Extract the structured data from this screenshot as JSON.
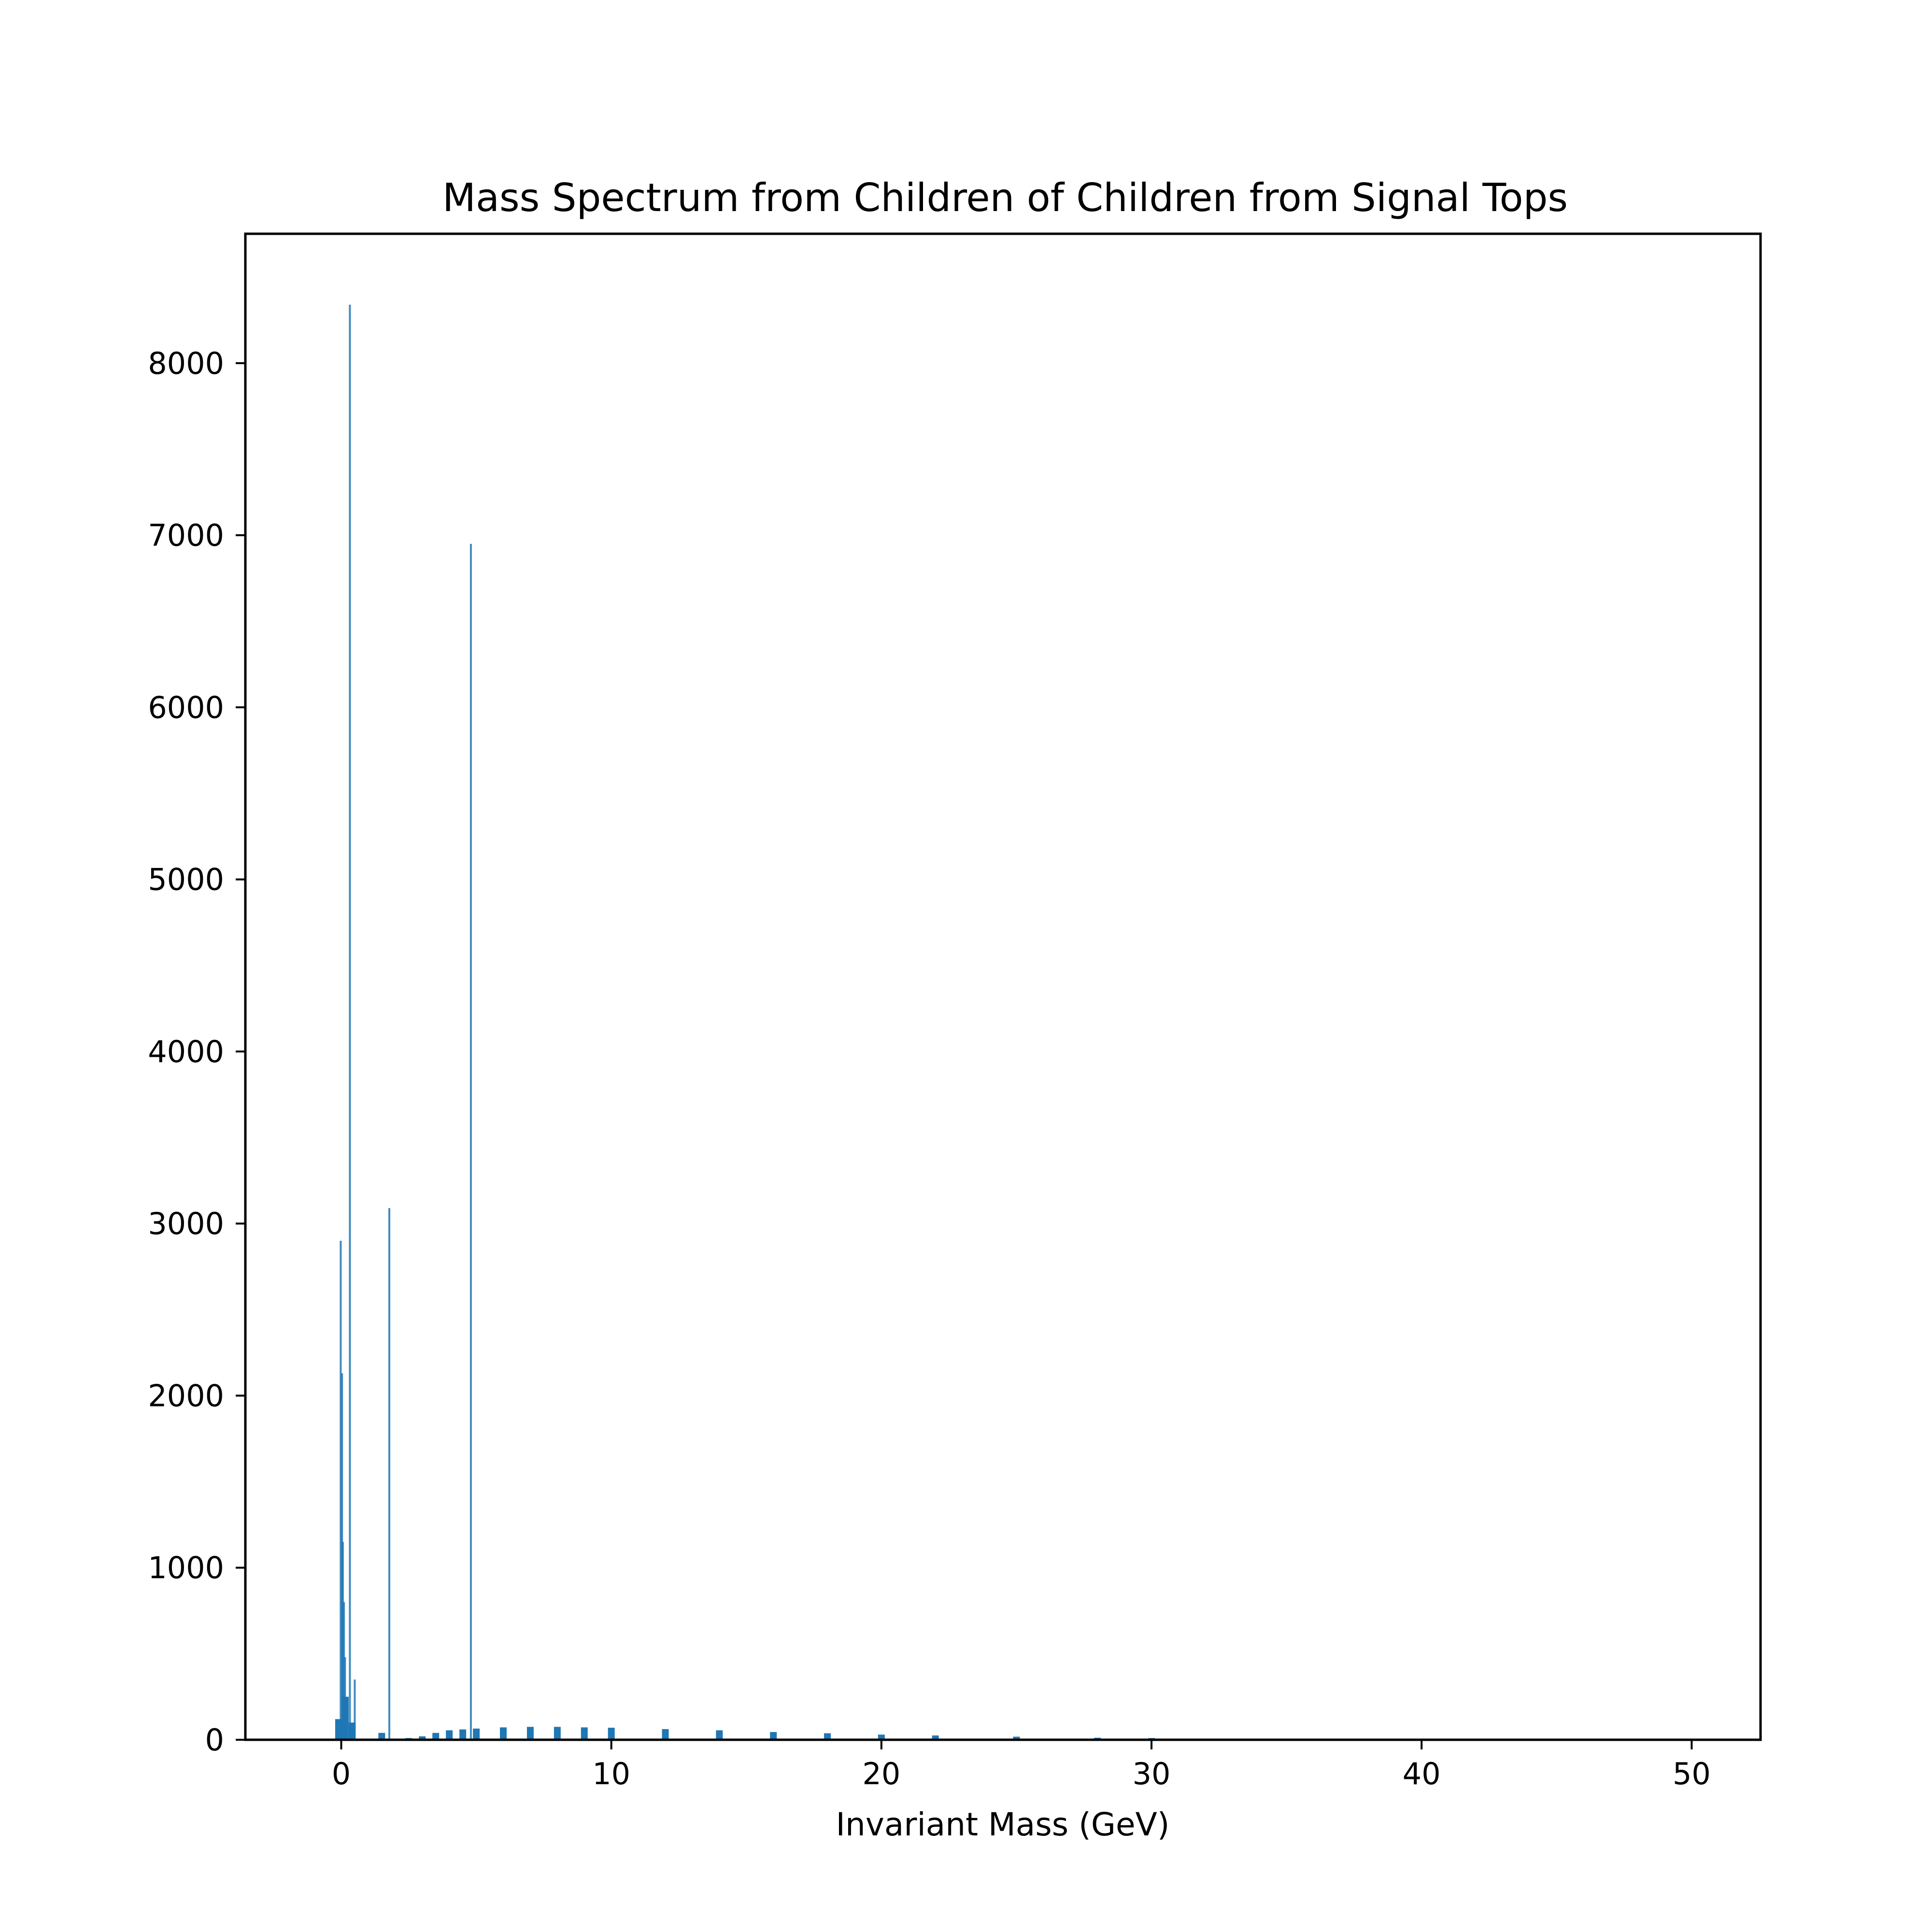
{
  "chart_data": {
    "type": "bar",
    "title": "Mass Spectrum from Children of Children from Signal Tops",
    "xlabel": "Invariant Mass (GeV)",
    "ylabel": "",
    "xlim": [
      -3.55,
      52.55
    ],
    "ylim": [
      0,
      8752
    ],
    "grid": false,
    "legend": "none",
    "bar_color": "#1f77b4",
    "x_ticks": [
      0,
      10,
      20,
      30,
      40,
      50
    ],
    "x_tick_labels": [
      "0",
      "10",
      "20",
      "30",
      "40",
      "50"
    ],
    "y_ticks": [
      0,
      1000,
      2000,
      3000,
      4000,
      5000,
      6000,
      7000,
      8000
    ],
    "y_tick_labels": [
      "0",
      "1000",
      "2000",
      "3000",
      "4000",
      "5000",
      "6000",
      "7000",
      "8000"
    ],
    "spikes": [
      {
        "x": -0.02,
        "y": 2900
      },
      {
        "x": 0.03,
        "y": 2130
      },
      {
        "x": 0.06,
        "y": 1150
      },
      {
        "x": 0.1,
        "y": 800
      },
      {
        "x": 0.14,
        "y": 480
      },
      {
        "x": 0.32,
        "y": 8340
      },
      {
        "x": 0.5,
        "y": 350
      },
      {
        "x": 1.78,
        "y": 3090
      },
      {
        "x": 4.8,
        "y": 6950
      }
    ],
    "histogram": {
      "bin_width": 0.25,
      "x": [
        -0.1,
        0.15,
        0.4,
        1.5,
        2.5,
        3.0,
        3.5,
        4.0,
        4.5,
        5.0,
        6.0,
        7.0,
        8.0,
        9.0,
        10.0,
        12.0,
        14.0,
        16.0,
        18.0,
        20.0,
        22.0,
        25.0,
        28.0,
        30.0,
        33.0,
        36.0,
        40.0,
        45.0,
        50.0
      ],
      "y": [
        120,
        250,
        100,
        40,
        10,
        20,
        40,
        55,
        60,
        65,
        72,
        75,
        75,
        72,
        70,
        62,
        55,
        45,
        38,
        30,
        25,
        18,
        12,
        10,
        7,
        5,
        3,
        2,
        1
      ]
    }
  }
}
